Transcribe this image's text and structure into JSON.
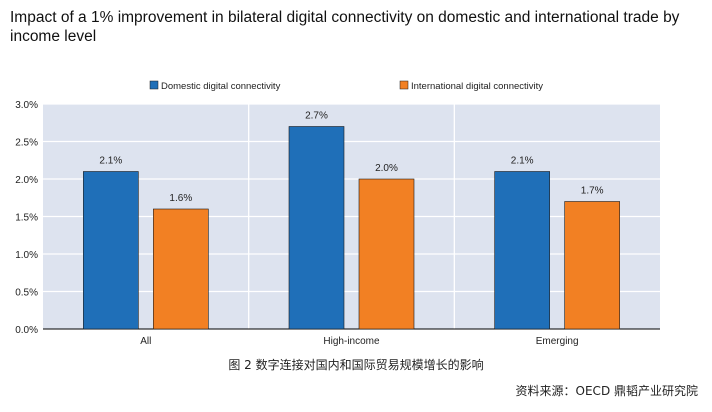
{
  "chart_data": {
    "type": "bar",
    "title": "Impact of a 1% improvement in bilateral digital connectivity on domestic and international trade by income level",
    "categories": [
      "All",
      "High-income",
      "Emerging"
    ],
    "series": [
      {
        "name": "Domestic digital connectivity",
        "values": [
          2.1,
          2.7,
          2.1
        ],
        "labels": [
          "2.1%",
          "2.7%",
          "2.1%"
        ],
        "color": "#1f6fb8"
      },
      {
        "name": "International digital connectivity",
        "values": [
          1.6,
          2.0,
          1.7
        ],
        "labels": [
          "1.6%",
          "2.0%",
          "1.7%"
        ],
        "color": "#f28023"
      }
    ],
    "xlabel": "",
    "ylabel": "",
    "ylim": [
      0,
      3.0
    ],
    "yticks": [
      "0.0%",
      "0.5%",
      "1.0%",
      "1.5%",
      "2.0%",
      "2.5%",
      "3.0%"
    ],
    "grid": true,
    "legend_position": "top-left",
    "background": "#dde3ef"
  },
  "caption": "图 2  数字连接对国内和国际贸易规模增长的影响",
  "source": "资料来源：OECD  鼎韬产业研究院"
}
